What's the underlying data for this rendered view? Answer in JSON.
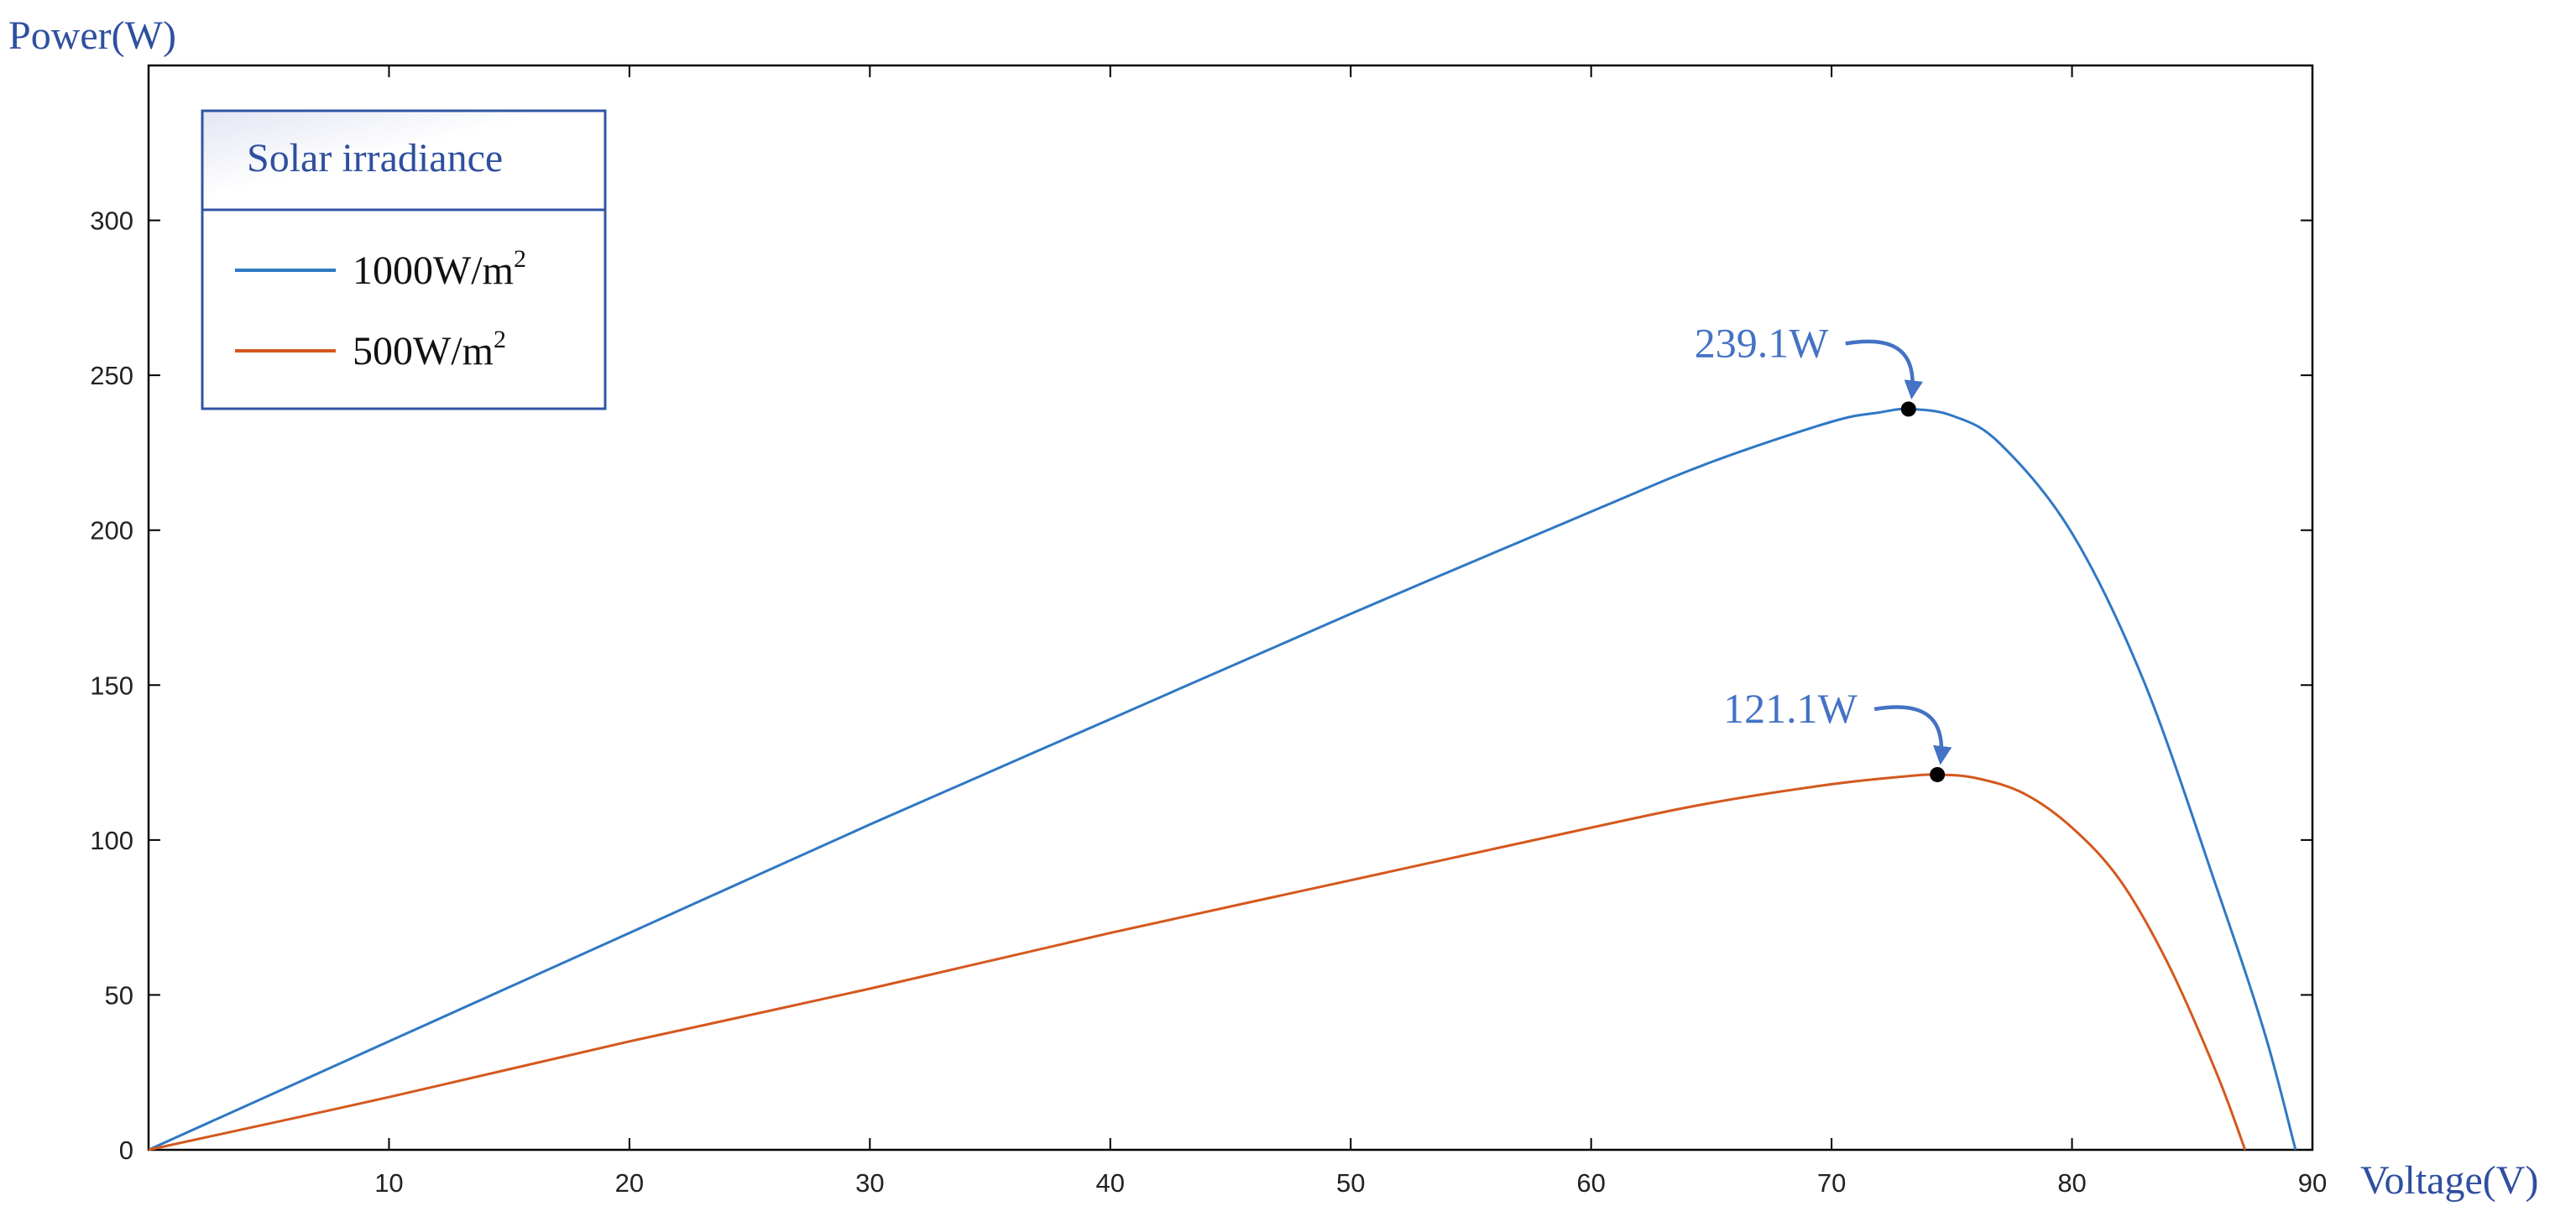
{
  "chart_data": {
    "type": "line",
    "title": "",
    "xlabel": "Voltage(V)",
    "ylabel": "Power(W)",
    "xlim": [
      0,
      90
    ],
    "ylim": [
      0,
      350
    ],
    "x_ticks": [
      10,
      20,
      30,
      40,
      50,
      60,
      70,
      80,
      90
    ],
    "y_ticks": [
      0,
      50,
      100,
      150,
      200,
      250,
      300
    ],
    "grid": false,
    "legend": {
      "title": "Solar irradiance",
      "position": "top-left",
      "entries": [
        {
          "label": "1000W/m",
          "superscript": "2",
          "color": "#2f78c4"
        },
        {
          "label": "500W/m",
          "superscript": "2",
          "color": "#d4581e"
        }
      ]
    },
    "series": [
      {
        "name": "1000W/m2",
        "color": "#2f78c4",
        "x": [
          0,
          10,
          20,
          30,
          40,
          50,
          60,
          65,
          70,
          72,
          73.2,
          75,
          77,
          80,
          83,
          86,
          88,
          89.3
        ],
        "y": [
          0,
          35,
          70,
          105,
          139,
          173,
          206,
          222,
          235,
          238,
          239.1,
          237,
          228,
          199,
          151,
          85,
          38,
          0
        ]
      },
      {
        "name": "500W/m2",
        "color": "#d4581e",
        "x": [
          0,
          10,
          20,
          30,
          40,
          50,
          60,
          65,
          70,
          73,
          74.4,
          76,
          78,
          80,
          82,
          84,
          86,
          87.2
        ],
        "y": [
          0,
          17,
          35,
          52,
          70,
          87,
          104,
          112,
          118,
          120.5,
          121.1,
          120,
          115,
          104,
          87,
          60,
          25,
          0
        ]
      }
    ],
    "annotations": [
      {
        "text": "239.1W",
        "x": 73.2,
        "y": 239.1,
        "color": "#4472c4"
      },
      {
        "text": "121.1W",
        "x": 74.4,
        "y": 121.1,
        "color": "#4472c4"
      }
    ],
    "axis_label_color": "#2f4f9f",
    "legend_border_color": "#2f55a4",
    "legend_title_color": "#2f4f9f",
    "marker_color": "#000000"
  }
}
